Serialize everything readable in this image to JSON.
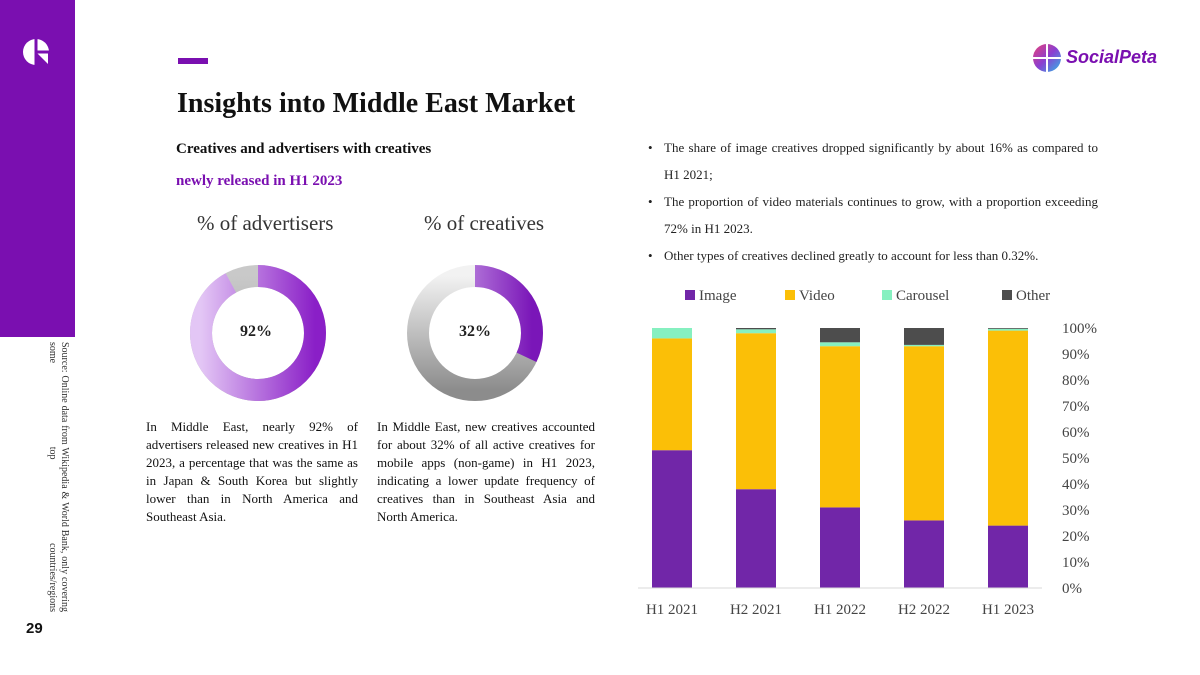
{
  "page": {
    "title": "Insights into Middle East Market",
    "subtitle_line1": "Creatives and advertisers with creatives",
    "subtitle_line2": "newly released in H1 2023",
    "page_number": "29",
    "source_note": "Source: Online data from Wikipedia & World Bank, only covering some top countries/regions",
    "brand": "SocialPeta",
    "accent_color": "#7a0fb0"
  },
  "donuts": [
    {
      "title": "% of advertisers",
      "value": 92,
      "label": "92%",
      "description": "In Middle East, nearly 92% of advertisers released new creatives in H1 2023, a percentage that was the same as in Japan & South Korea but slightly lower than in North America and Southeast Asia."
    },
    {
      "title": "% of creatives",
      "value": 32,
      "label": "32%",
      "description": "In Middle East, new creatives accounted for about 32% of all active creatives for mobile apps (non-game) in H1 2023, indicating a lower update frequency of creatives than in Southeast Asia and North America."
    }
  ],
  "bullets": [
    "The share of image creatives dropped significantly by about 16% as compared to H1 2021;",
    "The proportion of video materials continues to grow, with a proportion exceeding 72% in H1 2023.",
    "Other types of creatives declined greatly to account for less than 0.32%."
  ],
  "chart_data": {
    "type": "bar",
    "stacked": true,
    "categories": [
      "H1 2021",
      "H2 2021",
      "H1 2022",
      "H2 2022",
      "H1 2023"
    ],
    "series": [
      {
        "name": "Image",
        "color": "#7126a8",
        "values": [
          53,
          38,
          31,
          26,
          24
        ]
      },
      {
        "name": "Video",
        "color": "#fbbf07",
        "values": [
          43,
          60,
          62,
          67,
          75
        ]
      },
      {
        "name": "Carousel",
        "color": "#86f0c0",
        "values": [
          4,
          1.5,
          1.5,
          0.5,
          0.7
        ]
      },
      {
        "name": "Other",
        "color": "#4d4d4d",
        "values": [
          0,
          0.5,
          5.5,
          6.5,
          0.3
        ]
      }
    ],
    "ylim": [
      0,
      100
    ],
    "y_ticks": [
      "0%",
      "10%",
      "20%",
      "30%",
      "40%",
      "50%",
      "60%",
      "70%",
      "80%",
      "90%",
      "100%"
    ],
    "y_axis_side": "right",
    "legend_position": "top",
    "grid": false
  }
}
